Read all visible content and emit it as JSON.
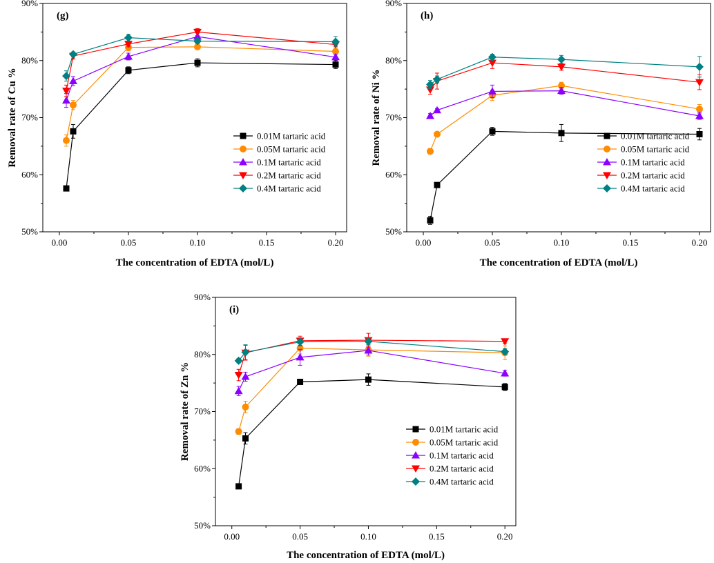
{
  "chart_data": [
    {
      "type": "line",
      "panel_label": "(g)",
      "xlabel": "The concentration of EDTA (mol/L)",
      "ylabel": "Removal rate of Cu %",
      "xlim": [
        -0.012,
        0.208
      ],
      "ylim": [
        50,
        90
      ],
      "xticks": [
        "0.00",
        "0.05",
        "0.10",
        "0.15",
        "0.20"
      ],
      "yticks": [
        "50%",
        "60%",
        "70%",
        "80%",
        "90%"
      ],
      "legend_position": "lower-right",
      "x": [
        0.005,
        0.01,
        0.05,
        0.1,
        0.2
      ],
      "series": [
        {
          "name": "0.01M tartaric acid",
          "values": [
            57.6,
            67.6,
            78.3,
            79.6,
            79.3
          ],
          "errors": [
            0.3,
            1.2,
            0.6,
            0.7,
            0.7
          ]
        },
        {
          "name": "0.05M tartaric acid",
          "values": [
            66.0,
            72.2,
            82.3,
            82.4,
            81.6
          ],
          "errors": [
            1.0,
            0.8,
            0.6,
            0.5,
            0.5
          ]
        },
        {
          "name": "0.1M tartaric acid",
          "values": [
            73.0,
            76.4,
            80.7,
            84.2,
            80.6
          ],
          "errors": [
            1.2,
            0.8,
            0.6,
            0.6,
            0.5
          ]
        },
        {
          "name": "0.2M tartaric acid",
          "values": [
            74.7,
            80.8,
            82.9,
            85.0,
            82.8
          ],
          "errors": [
            1.0,
            0.5,
            0.5,
            0.6,
            0.4
          ]
        },
        {
          "name": "0.4M tartaric acid",
          "values": [
            77.3,
            81.1,
            84.0,
            83.4,
            83.3
          ],
          "errors": [
            0.9,
            0.4,
            0.6,
            0.4,
            0.9
          ]
        }
      ]
    },
    {
      "type": "line",
      "panel_label": "(h)",
      "xlabel": "The concentration of EDTA (mol/L)",
      "ylabel": "Removal rate of Ni %",
      "xlim": [
        -0.012,
        0.208
      ],
      "ylim": [
        50,
        90
      ],
      "xticks": [
        "0.00",
        "0.05",
        "0.10",
        "0.15",
        "0.20"
      ],
      "yticks": [
        "50%",
        "60%",
        "70%",
        "80%",
        "90%"
      ],
      "legend_position": "lower-right",
      "x": [
        0.005,
        0.01,
        0.05,
        0.1,
        0.2
      ],
      "series": [
        {
          "name": "0.01M tartaric acid",
          "values": [
            52.0,
            58.2,
            67.6,
            67.3,
            67.1
          ],
          "errors": [
            0.7,
            0.4,
            0.7,
            1.5,
            1.0
          ]
        },
        {
          "name": "0.05M tartaric acid",
          "values": [
            64.1,
            67.1,
            73.9,
            75.6,
            71.5
          ],
          "errors": [
            0.5,
            0.3,
            0.9,
            0.6,
            0.8
          ]
        },
        {
          "name": "0.1M tartaric acid",
          "values": [
            70.3,
            71.3,
            74.6,
            74.7,
            70.3
          ],
          "errors": [
            0.4,
            0.3,
            1.1,
            0.6,
            0.6
          ]
        },
        {
          "name": "0.2M tartaric acid",
          "values": [
            74.9,
            76.4,
            79.6,
            78.9,
            76.2
          ],
          "errors": [
            0.8,
            1.4,
            1.0,
            0.6,
            1.3
          ]
        },
        {
          "name": "0.4M tartaric acid",
          "values": [
            75.8,
            76.7,
            80.6,
            80.2,
            78.9
          ],
          "errors": [
            0.7,
            0.6,
            0.5,
            0.7,
            1.8
          ]
        }
      ]
    },
    {
      "type": "line",
      "panel_label": "(i)",
      "xlabel": "The concentration of EDTA (mol/L)",
      "ylabel": "Removal rate of Zn %",
      "xlim": [
        -0.012,
        0.208
      ],
      "ylim": [
        50,
        90
      ],
      "xticks": [
        "0.00",
        "0.05",
        "0.10",
        "0.15",
        "0.20"
      ],
      "yticks": [
        "50%",
        "60%",
        "70%",
        "80%",
        "90%"
      ],
      "legend_position": "lower-right",
      "x": [
        0.005,
        0.01,
        0.05,
        0.1,
        0.2
      ],
      "series": [
        {
          "name": "0.01M tartaric acid",
          "values": [
            56.9,
            65.3,
            75.2,
            75.6,
            74.3
          ],
          "errors": [
            0.3,
            1.0,
            0.3,
            1.0,
            0.6
          ]
        },
        {
          "name": "0.05M tartaric acid",
          "values": [
            66.5,
            70.8,
            81.1,
            80.8,
            80.3
          ],
          "errors": [
            0.5,
            1.0,
            1.0,
            1.1,
            1.2
          ]
        },
        {
          "name": "0.1M tartaric acid",
          "values": [
            73.6,
            76.1,
            79.5,
            80.7,
            76.7
          ],
          "errors": [
            0.8,
            0.8,
            1.4,
            0.8,
            0.5
          ]
        },
        {
          "name": "0.2M tartaric acid",
          "values": [
            76.4,
            80.3,
            82.4,
            82.5,
            82.3
          ],
          "errors": [
            1.0,
            1.3,
            0.8,
            1.2,
            0.4
          ]
        },
        {
          "name": "0.4M tartaric acid",
          "values": [
            78.9,
            80.4,
            82.2,
            82.3,
            80.5
          ],
          "errors": [
            0.4,
            1.3,
            0.7,
            0.6,
            0.5
          ]
        }
      ]
    }
  ],
  "series_styles": [
    {
      "color": "#000000",
      "marker": "square"
    },
    {
      "color": "#ff8c00",
      "marker": "circle"
    },
    {
      "color": "#8b00ff",
      "marker": "triangle-up"
    },
    {
      "color": "#ff0000",
      "marker": "triangle-down"
    },
    {
      "color": "#008080",
      "marker": "diamond"
    }
  ]
}
